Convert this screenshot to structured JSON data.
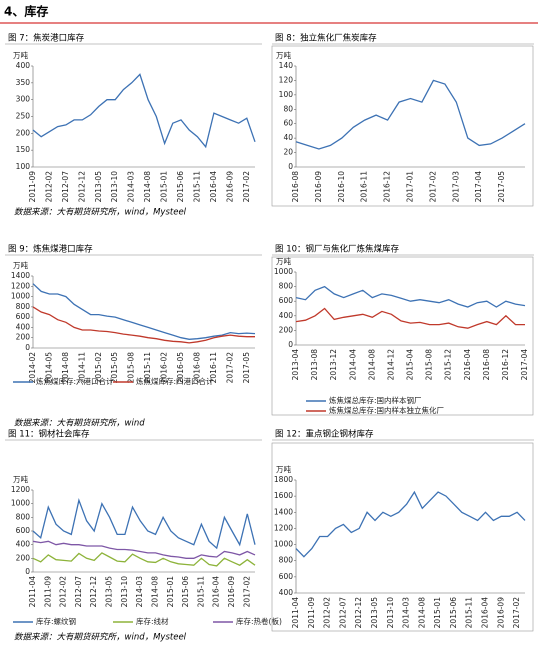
{
  "heading": "4、库存",
  "sources": [
    "数据来源：大有期货研究所，wind，Mysteel",
    "数据来源：大有期货研究所，wind",
    "数据来源：大有期货研究所，wind，Mysteel"
  ],
  "chart_data": [
    {
      "type": "line",
      "title": "图 7：焦炭港口库存",
      "unit": "万吨",
      "categories": [
        "2011-09",
        null,
        "2012-02",
        null,
        "2012-07",
        null,
        "2012-12",
        null,
        "2013-05",
        null,
        "2013-10",
        null,
        "2014-03",
        null,
        "2014-08",
        null,
        "2015-01",
        null,
        "2015-06",
        null,
        "2015-11",
        null,
        "2016-04",
        null,
        "2016-09",
        null,
        "2017-02",
        null
      ],
      "series": [
        {
          "name": null,
          "color": "#3d72b4",
          "values": [
            210,
            190,
            205,
            220,
            225,
            240,
            240,
            255,
            280,
            300,
            300,
            330,
            350,
            375,
            300,
            250,
            170,
            230,
            240,
            210,
            190,
            160,
            260,
            250,
            240,
            230,
            245,
            175
          ]
        }
      ],
      "ylim": [
        100,
        400
      ],
      "yticks": [
        100,
        150,
        200,
        250,
        300,
        350,
        400
      ]
    },
    {
      "type": "line",
      "title": "图 8：独立焦化厂焦炭库存",
      "unit": "万吨",
      "categories": [
        "2016-08",
        null,
        "2016-09",
        null,
        "2016-10",
        null,
        "2016-11",
        null,
        "2016-12",
        null,
        "2017-01",
        null,
        "2017-02",
        null,
        "2017-03",
        null,
        "2017-04",
        null,
        "2017-05",
        null,
        null
      ],
      "series": [
        {
          "name": null,
          "color": "#3d72b4",
          "values": [
            35,
            30,
            25,
            30,
            40,
            55,
            65,
            72,
            65,
            90,
            95,
            90,
            120,
            115,
            90,
            40,
            30,
            32,
            40,
            50,
            60
          ]
        }
      ],
      "ylim": [
        0,
        140
      ],
      "yticks": [
        0,
        20,
        40,
        60,
        80,
        100,
        120,
        140
      ]
    },
    {
      "type": "line",
      "title": "图 9：炼焦煤港口库存",
      "unit": "万吨",
      "categories": [
        "2014-02",
        null,
        "2014-05",
        null,
        "2014-08",
        null,
        "2014-11",
        null,
        "2015-02",
        null,
        "2015-05",
        null,
        "2015-08",
        null,
        "2015-11",
        null,
        "2016-02",
        null,
        "2016-05",
        null,
        "2016-08",
        null,
        "2016-11",
        null,
        "2017-02",
        null,
        "2017-05",
        null
      ],
      "series": [
        {
          "name": "炼焦煤库存:六港口合计",
          "color": "#3d72b4",
          "values": [
            1250,
            1100,
            1050,
            1050,
            1000,
            850,
            750,
            650,
            650,
            620,
            600,
            550,
            500,
            450,
            400,
            350,
            300,
            250,
            200,
            170,
            180,
            200,
            230,
            250,
            300,
            280,
            290,
            280
          ]
        },
        {
          "name": "炼焦煤库存:四港口合计",
          "color": "#c0392b",
          "values": [
            800,
            700,
            650,
            550,
            500,
            400,
            350,
            350,
            330,
            320,
            300,
            270,
            250,
            230,
            200,
            180,
            150,
            130,
            120,
            100,
            120,
            150,
            200,
            230,
            250,
            230,
            220,
            220
          ]
        }
      ],
      "ylim": [
        0,
        1400
      ],
      "yticks": [
        0,
        200,
        400,
        600,
        800,
        1000,
        1200,
        1400
      ]
    },
    {
      "type": "line",
      "title": "图 10：钢厂与焦化厂炼焦煤库存",
      "unit": "万吨",
      "categories": [
        "2013-04",
        null,
        "2013-08",
        null,
        "2013-12",
        null,
        "2014-04",
        null,
        "2014-08",
        null,
        "2014-12",
        null,
        "2015-04",
        null,
        "2015-08",
        null,
        "2015-12",
        null,
        "2016-04",
        null,
        "2016-08",
        null,
        "2016-12",
        null,
        "2017-04"
      ],
      "series": [
        {
          "name": "炼焦煤总库存:国内样本钢厂",
          "color": "#3d72b4",
          "values": [
            650,
            620,
            750,
            800,
            700,
            650,
            700,
            750,
            650,
            700,
            680,
            640,
            600,
            620,
            600,
            580,
            620,
            560,
            520,
            580,
            600,
            520,
            600,
            560,
            540
          ]
        },
        {
          "name": "炼焦煤总库存:国内样本独立焦化厂",
          "color": "#c0392b",
          "values": [
            320,
            340,
            400,
            500,
            350,
            380,
            400,
            420,
            380,
            460,
            420,
            330,
            300,
            310,
            280,
            280,
            300,
            250,
            230,
            280,
            320,
            280,
            400,
            280,
            280
          ]
        }
      ],
      "ylim": [
        0,
        1000
      ],
      "yticks": [
        0,
        200,
        400,
        600,
        800,
        1000
      ]
    },
    {
      "type": "line",
      "title": "图 11：钢材社会库存",
      "unit": "万吨",
      "categories": [
        "2011-04",
        null,
        "2011-09",
        null,
        "2012-02",
        null,
        "2012-07",
        null,
        "2012-12",
        null,
        "2013-05",
        null,
        "2013-10",
        null,
        "2014-03",
        null,
        "2014-08",
        null,
        "2015-01",
        null,
        "2015-06",
        null,
        "2015-11",
        null,
        "2016-04",
        null,
        "2016-09",
        null,
        "2017-02",
        null
      ],
      "series": [
        {
          "name": "库存:螺纹钢",
          "color": "#3d72b4",
          "values": [
            600,
            500,
            950,
            700,
            600,
            550,
            1050,
            750,
            600,
            1000,
            800,
            550,
            550,
            950,
            750,
            600,
            550,
            800,
            600,
            500,
            450,
            400,
            700,
            450,
            350,
            800,
            600,
            400,
            850,
            400
          ]
        },
        {
          "name": "库存:线材",
          "color": "#8db33a",
          "values": [
            200,
            150,
            250,
            180,
            170,
            160,
            270,
            200,
            170,
            280,
            220,
            160,
            150,
            260,
            200,
            150,
            140,
            200,
            150,
            120,
            110,
            100,
            200,
            110,
            90,
            200,
            150,
            100,
            180,
            100
          ]
        },
        {
          "name": "库存:热卷(板)",
          "color": "#7e57a6",
          "values": [
            450,
            430,
            450,
            400,
            420,
            400,
            400,
            380,
            380,
            380,
            350,
            330,
            330,
            320,
            300,
            280,
            280,
            250,
            230,
            220,
            200,
            200,
            250,
            230,
            220,
            300,
            280,
            250,
            300,
            250
          ]
        }
      ],
      "ylim": [
        0,
        1200
      ],
      "yticks": [
        0,
        200,
        400,
        600,
        800,
        1000,
        1200
      ]
    },
    {
      "type": "line",
      "title": "图 12：重点钢企钢材库存",
      "unit": "万吨",
      "categories": [
        "2011-04",
        null,
        "2011-09",
        null,
        "2012-02",
        null,
        "2012-07",
        null,
        "2012-12",
        null,
        "2013-05",
        null,
        "2013-10",
        null,
        "2014-03",
        null,
        "2014-08",
        null,
        "2015-01",
        null,
        "2015-06",
        null,
        "2015-11",
        null,
        "2016-04",
        null,
        "2016-09",
        null,
        "2017-02",
        null
      ],
      "series": [
        {
          "name": null,
          "color": "#3d72b4",
          "values": [
            950,
            850,
            950,
            1100,
            1100,
            1200,
            1250,
            1150,
            1200,
            1400,
            1300,
            1400,
            1350,
            1400,
            1500,
            1650,
            1450,
            1550,
            1650,
            1600,
            1500,
            1400,
            1350,
            1300,
            1400,
            1300,
            1350,
            1350,
            1400,
            1300
          ]
        }
      ],
      "ylim": [
        400,
        1800
      ],
      "yticks": [
        400,
        600,
        800,
        1000,
        1200,
        1400,
        1600,
        1800
      ]
    }
  ]
}
